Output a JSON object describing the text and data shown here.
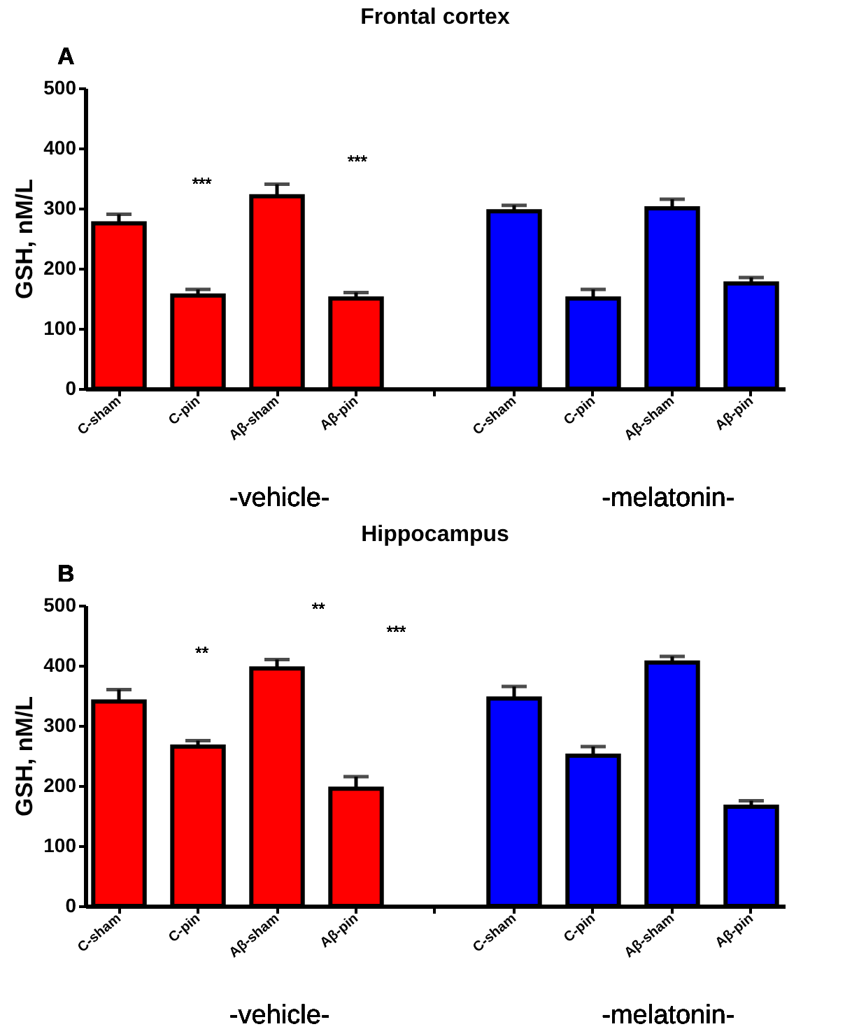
{
  "chart_data": [
    {
      "type": "bar",
      "title": "Frontal cortex",
      "ylabel": "GSH, nM/L",
      "categories": [
        "C-sham",
        "C-pin",
        "Aβ-sham",
        "Aβ-pin",
        null,
        "C-sham",
        "C-pin",
        "Aβ-sham",
        "Aβ-pin"
      ],
      "values": [
        275,
        155,
        320,
        150,
        null,
        295,
        150,
        300,
        175
      ],
      "errors": [
        15,
        10,
        20,
        10,
        null,
        10,
        15,
        15,
        10
      ],
      "colors": [
        "#ff0000",
        "#ff0000",
        "#ff0000",
        "#ff0000",
        "#ffffff",
        "#0000ff",
        "#0000ff",
        "#0000ff",
        "#0000ff"
      ],
      "ylim": [
        0,
        500
      ],
      "yticks": [
        0,
        100,
        200,
        300,
        400,
        500
      ],
      "annotations": [
        "A",
        "***",
        "***",
        "-vehicle-",
        "-melatonin-"
      ]
    },
    {
      "type": "bar",
      "title": "Hippocampus",
      "ylabel": "GSH, nM/L",
      "categories": [
        "C-sham",
        "C-pin",
        "Aβ-sham",
        "Aβ-pin",
        null,
        "C-sham",
        "C-pin",
        "Aβ-sham",
        "Aβ-pin"
      ],
      "values": [
        340,
        265,
        395,
        195,
        null,
        345,
        250,
        405,
        165
      ],
      "errors": [
        20,
        10,
        15,
        20,
        null,
        20,
        15,
        10,
        10
      ],
      "colors": [
        "#ff0000",
        "#ff0000",
        "#ff0000",
        "#ff0000",
        "#ffffff",
        "#0000ff",
        "#0000ff",
        "#0000ff",
        "#0000ff"
      ],
      "ylim": [
        0,
        500
      ],
      "yticks": [
        0,
        100,
        200,
        300,
        400,
        500
      ],
      "annotations": [
        "B",
        "**",
        "**",
        "***",
        "-vehicle-",
        "-melatonin-"
      ]
    }
  ]
}
